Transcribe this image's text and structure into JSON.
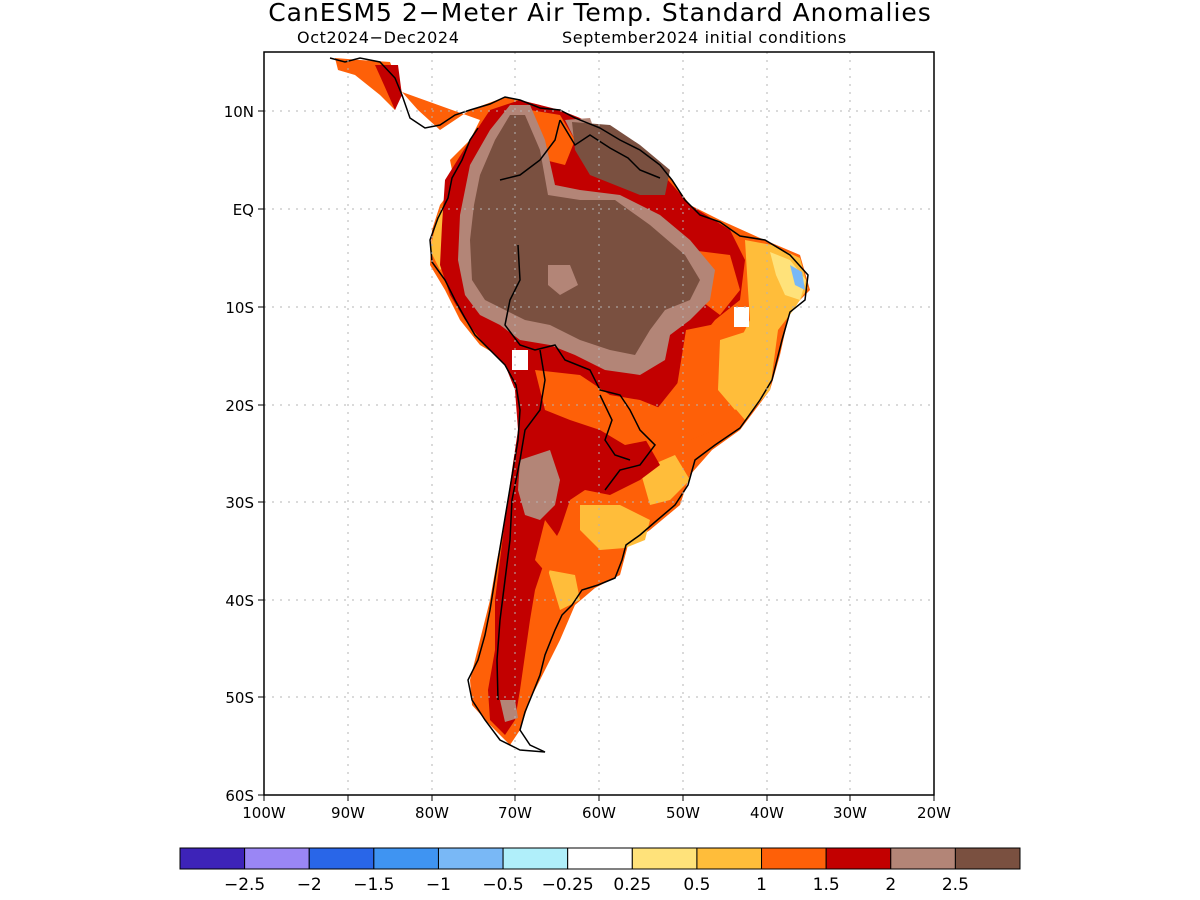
{
  "title": "CanESM5 2−Meter Air Temp. Standard Anomalies",
  "subtitle_left": "Oct2024−Dec2024",
  "subtitle_right": "September2024 initial conditions",
  "lat_labels": [
    "10N",
    "EQ",
    "10S",
    "20S",
    "30S",
    "40S",
    "50S",
    "60S"
  ],
  "lon_labels": [
    "100W",
    "90W",
    "80W",
    "70W",
    "60W",
    "50W",
    "40W",
    "30W",
    "20W"
  ],
  "colorbar": {
    "colors": [
      "#3d23b8",
      "#9a86f5",
      "#2966e8",
      "#3f94f2",
      "#79b8f6",
      "#b0effa",
      "#ffffff",
      "#ffe27a",
      "#ffbd3a",
      "#fe6008",
      "#c20000",
      "#b38577",
      "#7a5040"
    ],
    "labels": [
      "−2.5",
      "−2",
      "−1.5",
      "−1",
      "−0.5",
      "−0.25",
      "0.25",
      "0.5",
      "1",
      "1.5",
      "2",
      "2.5"
    ]
  }
}
